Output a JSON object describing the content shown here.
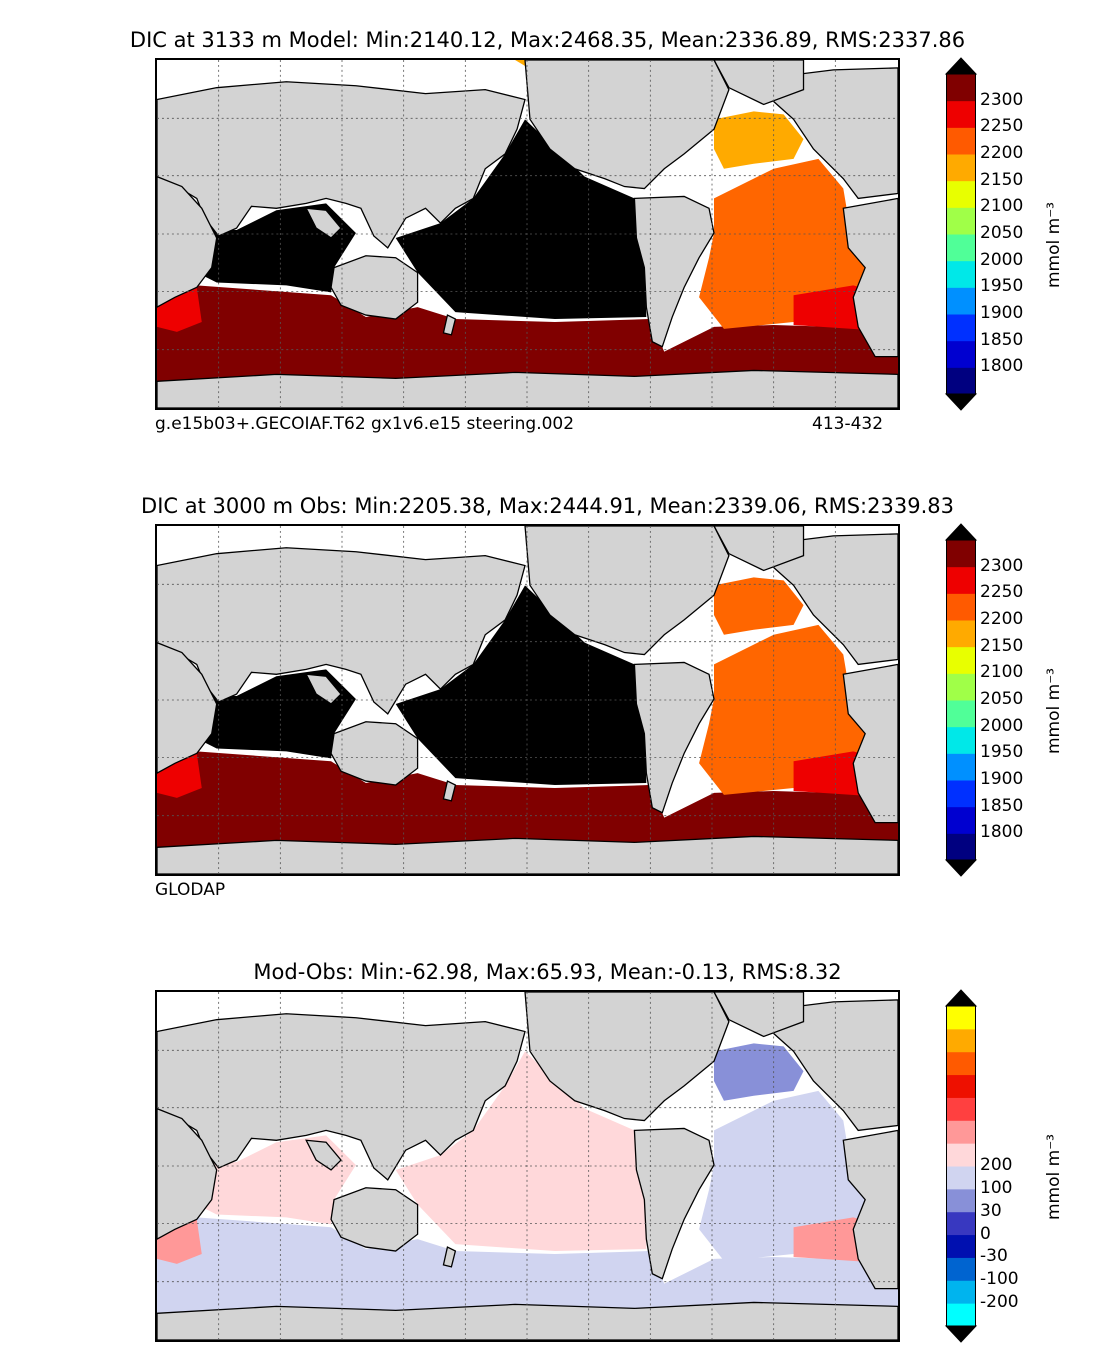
{
  "panels": [
    {
      "title": "DIC at 3133 m Model: Min:2140.12, Max:2468.35, Mean:2336.89, RMS:2337.86",
      "caption_left": "g.e15b03+.GECOIAF.T62 gx1v6.e15 steering.002",
      "caption_right": "413-432",
      "colorbar": {
        "units": "mmol m⁻³",
        "ticks": [
          "1800",
          "1850",
          "1900",
          "1950",
          "2000",
          "2050",
          "2100",
          "2150",
          "2200",
          "2250",
          "2300"
        ],
        "colors": [
          "#000080",
          "#0000d0",
          "#0030ff",
          "#0090ff",
          "#00e8e8",
          "#50ff98",
          "#a0ff48",
          "#e8ff00",
          "#ffaa00",
          "#ff5a00",
          "#ee0000",
          "#800000"
        ],
        "under": "#000000",
        "over": "#000000"
      },
      "regions": {
        "pacific": "#000000",
        "indian": "#000000",
        "southern": "#800000",
        "atlantic": "#ff6600",
        "north_atlantic": "#ffaa00",
        "south_atlantic_red": "#ee0000",
        "arctic": "#ffaa00"
      }
    },
    {
      "title": "DIC at 3000 m Obs: Min:2205.38, Max:2444.91, Mean:2339.06, RMS:2339.83",
      "caption_left": "GLODAP",
      "caption_right": "",
      "colorbar": {
        "units": "mmol m⁻³",
        "ticks": [
          "1800",
          "1850",
          "1900",
          "1950",
          "2000",
          "2050",
          "2100",
          "2150",
          "2200",
          "2250",
          "2300"
        ],
        "colors": [
          "#000080",
          "#0000d0",
          "#0030ff",
          "#0090ff",
          "#00e8e8",
          "#50ff98",
          "#a0ff48",
          "#e8ff00",
          "#ffaa00",
          "#ff5a00",
          "#ee0000",
          "#800000"
        ],
        "under": "#000000",
        "over": "#000000"
      },
      "regions": {
        "pacific": "#000000",
        "indian": "#000000",
        "southern": "#800000",
        "atlantic": "#ff6600",
        "north_atlantic": "#ff6600",
        "south_atlantic_red": "#ee0000",
        "arctic": "#ffffff"
      }
    },
    {
      "title": "Mod-Obs: Min:-62.98, Max:65.93, Mean:-0.13, RMS:8.32",
      "caption_left": "",
      "caption_right": "",
      "colorbar": {
        "units": "mmol m⁻³",
        "ticks": [
          "-200",
          "-100",
          "-30",
          "0",
          "30",
          "100",
          "200"
        ],
        "colors": [
          "#00ffff",
          "#00b4ee",
          "#0064d0",
          "#0010b0",
          "#3838c0",
          "#8890d8",
          "#d0d4f0",
          "#ffd8da",
          "#ff9898",
          "#ff4040",
          "#ee1000",
          "#ff5a00",
          "#ffaa00",
          "#ffff00"
        ],
        "under": "#000000",
        "over": "#000000"
      },
      "regions": {
        "pacific": "#ffd8da",
        "indian": "#ffd8da",
        "southern": "#d0d4f0",
        "atlantic": "#d0d4f0",
        "north_atlantic": "#8890d8",
        "south_atlantic_red": "#ff9898",
        "arctic": "#ffffff"
      }
    }
  ],
  "colors": {
    "land": "#d3d3d3",
    "coast": "#000000",
    "grid": "#555555",
    "missing": "#ffffff"
  }
}
